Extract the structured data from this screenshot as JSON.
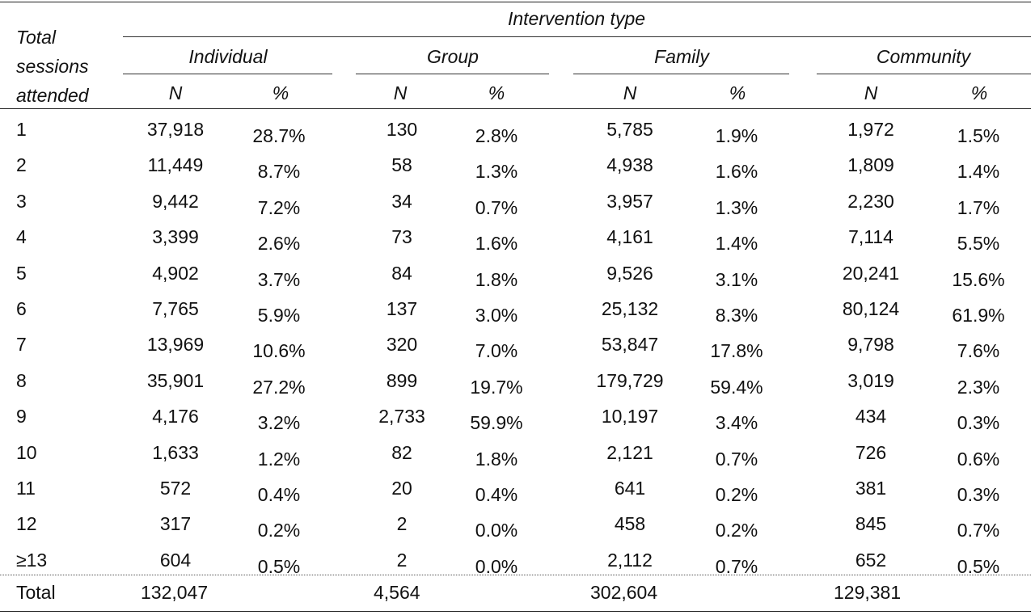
{
  "table": {
    "row_header_lines": [
      "Total",
      "sessions",
      "attended"
    ],
    "group_header": "Intervention type",
    "groups": [
      "Individual",
      "Group",
      "Family",
      "Community"
    ],
    "sub_headers": [
      "N",
      "%"
    ],
    "rows": [
      {
        "label": "1",
        "cells": [
          "37,918",
          "28.7%",
          "130",
          "2.8%",
          "5,785",
          "1.9%",
          "1,972",
          "1.5%"
        ]
      },
      {
        "label": "2",
        "cells": [
          "11,449",
          "8.7%",
          "58",
          "1.3%",
          "4,938",
          "1.6%",
          "1,809",
          "1.4%"
        ]
      },
      {
        "label": "3",
        "cells": [
          "9,442",
          "7.2%",
          "34",
          "0.7%",
          "3,957",
          "1.3%",
          "2,230",
          "1.7%"
        ]
      },
      {
        "label": "4",
        "cells": [
          "3,399",
          "2.6%",
          "73",
          "1.6%",
          "4,161",
          "1.4%",
          "7,114",
          "5.5%"
        ]
      },
      {
        "label": "5",
        "cells": [
          "4,902",
          "3.7%",
          "84",
          "1.8%",
          "9,526",
          "3.1%",
          "20,241",
          "15.6%"
        ]
      },
      {
        "label": "6",
        "cells": [
          "7,765",
          "5.9%",
          "137",
          "3.0%",
          "25,132",
          "8.3%",
          "80,124",
          "61.9%"
        ]
      },
      {
        "label": "7",
        "cells": [
          "13,969",
          "10.6%",
          "320",
          "7.0%",
          "53,847",
          "17.8%",
          "9,798",
          "7.6%"
        ]
      },
      {
        "label": "8",
        "cells": [
          "35,901",
          "27.2%",
          "899",
          "19.7%",
          "179,729",
          "59.4%",
          "3,019",
          "2.3%"
        ]
      },
      {
        "label": "9",
        "cells": [
          "4,176",
          "3.2%",
          "2,733",
          "59.9%",
          "10,197",
          "3.4%",
          "434",
          "0.3%"
        ]
      },
      {
        "label": "10",
        "cells": [
          "1,633",
          "1.2%",
          "82",
          "1.8%",
          "2,121",
          "0.7%",
          "726",
          "0.6%"
        ]
      },
      {
        "label": "11",
        "cells": [
          "572",
          "0.4%",
          "20",
          "0.4%",
          "641",
          "0.2%",
          "381",
          "0.3%"
        ]
      },
      {
        "label": "12",
        "cells": [
          "317",
          "0.2%",
          "2",
          "0.0%",
          "458",
          "0.2%",
          "845",
          "0.7%"
        ]
      },
      {
        "label": "≥13",
        "cells": [
          "604",
          "0.5%",
          "2",
          "0.0%",
          "2,112",
          "0.7%",
          "652",
          "0.5%"
        ]
      }
    ],
    "total": {
      "label": "Total",
      "cells": [
        "132,047",
        "4,564",
        "302,604",
        "129,381"
      ]
    }
  }
}
